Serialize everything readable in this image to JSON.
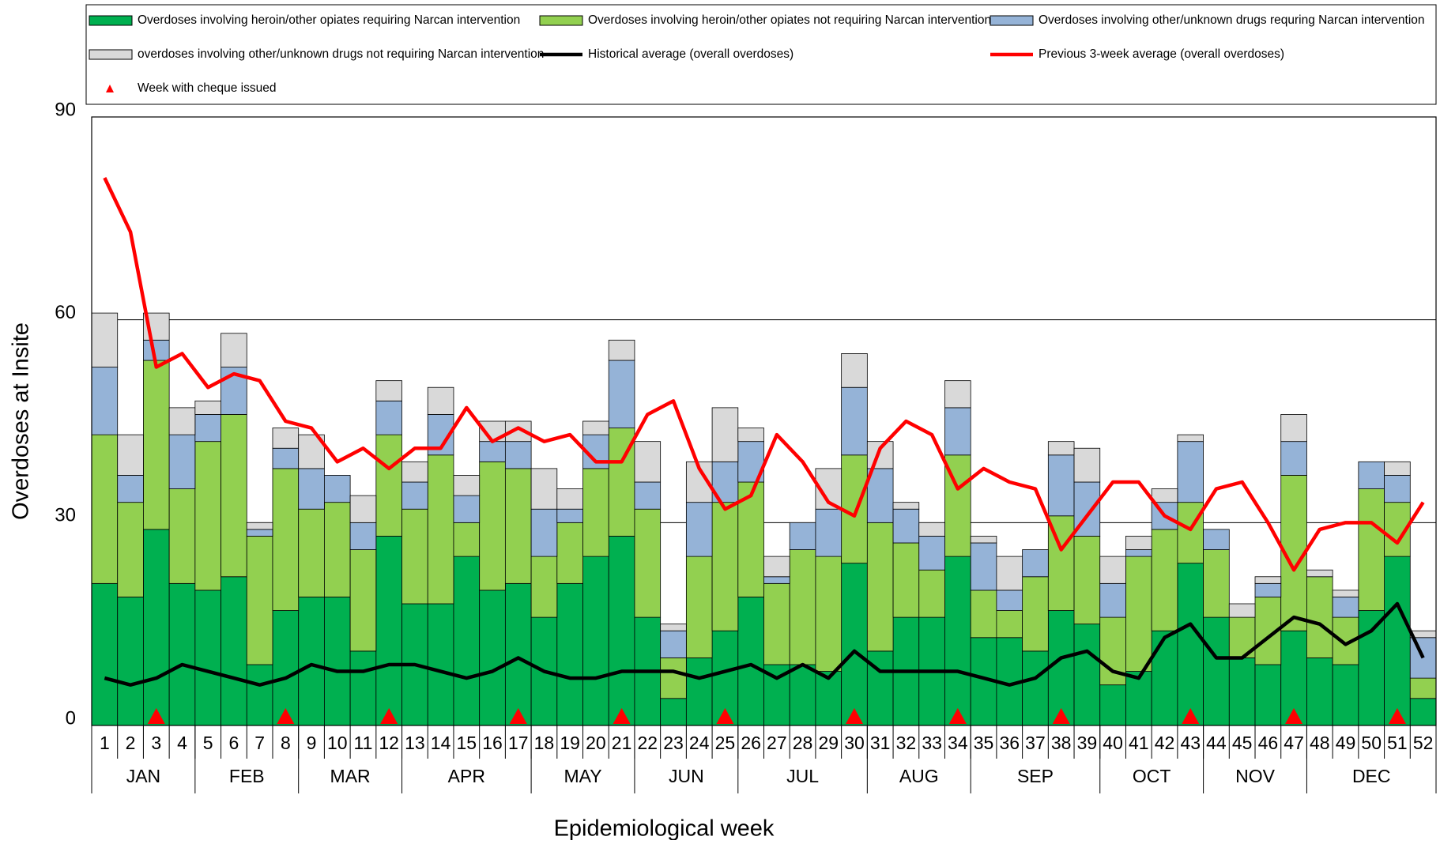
{
  "chart_data": {
    "type": "bar",
    "stacked": true,
    "x_label": "Epidemiological week",
    "y_label": "Overdoses at Insite",
    "categories": [
      "1",
      "2",
      "3",
      "4",
      "5",
      "6",
      "7",
      "8",
      "9",
      "10",
      "11",
      "12",
      "13",
      "14",
      "15",
      "16",
      "17",
      "18",
      "19",
      "20",
      "21",
      "22",
      "23",
      "24",
      "25",
      "26",
      "27",
      "28",
      "29",
      "30",
      "31",
      "32",
      "33",
      "34",
      "35",
      "36",
      "37",
      "38",
      "39",
      "40",
      "41",
      "42",
      "43",
      "44",
      "45",
      "46",
      "47",
      "48",
      "49",
      "50",
      "51",
      "52"
    ],
    "months": [
      {
        "label": "JAN",
        "first_week": "1",
        "last_week": "4"
      },
      {
        "label": "FEB",
        "first_week": "5",
        "last_week": "8"
      },
      {
        "label": "MAR",
        "first_week": "9",
        "last_week": "12"
      },
      {
        "label": "APR",
        "first_week": "13",
        "last_week": "17"
      },
      {
        "label": "MAY",
        "first_week": "18",
        "last_week": "21"
      },
      {
        "label": "JUN",
        "first_week": "22",
        "last_week": "25"
      },
      {
        "label": "JUL",
        "first_week": "26",
        "last_week": "30"
      },
      {
        "label": "AUG",
        "first_week": "31",
        "last_week": "34"
      },
      {
        "label": "SEP",
        "first_week": "35",
        "last_week": "39"
      },
      {
        "label": "OCT",
        "first_week": "40",
        "last_week": "43"
      },
      {
        "label": "NOV",
        "first_week": "44",
        "last_week": "47"
      },
      {
        "label": "DEC",
        "first_week": "48",
        "last_week": "52"
      }
    ],
    "series": [
      {
        "name": "Overdoses involving heroin/other opiates requiring Narcan intervention",
        "color": "#00b050",
        "values": [
          21,
          19,
          29,
          21,
          20,
          22,
          9,
          17,
          19,
          19,
          11,
          28,
          18,
          18,
          25,
          20,
          21,
          16,
          21,
          25,
          28,
          16,
          4,
          10,
          14,
          19,
          9,
          9,
          8,
          24,
          11,
          16,
          16,
          25,
          13,
          13,
          11,
          17,
          15,
          6,
          8,
          14,
          24,
          16,
          10,
          9,
          14,
          10,
          9,
          17,
          25,
          4
        ]
      },
      {
        "name": "Overdoses involving heroin/other opiates not requiring Narcan intervention",
        "color": "#92d050",
        "values": [
          22,
          14,
          25,
          14,
          22,
          24,
          19,
          21,
          13,
          14,
          15,
          15,
          14,
          22,
          5,
          19,
          17,
          9,
          9,
          13,
          16,
          16,
          6,
          15,
          19,
          17,
          12,
          17,
          17,
          16,
          19,
          11,
          7,
          15,
          7,
          4,
          11,
          14,
          13,
          10,
          17,
          15,
          9,
          10,
          6,
          10,
          23,
          12,
          7,
          18,
          8,
          3
        ]
      },
      {
        "name": "Overdoses involving other/unknown drugs requring Narcan intervention",
        "color": "#95b3d7",
        "values": [
          10,
          4,
          3,
          8,
          4,
          7,
          1,
          3,
          6,
          4,
          4,
          5,
          4,
          6,
          4,
          3,
          4,
          7,
          2,
          5,
          10,
          4,
          4,
          8,
          6,
          6,
          1,
          4,
          7,
          10,
          8,
          5,
          5,
          7,
          7,
          3,
          4,
          9,
          8,
          5,
          1,
          4,
          9,
          3,
          0,
          2,
          5,
          0,
          3,
          4,
          4,
          6
        ]
      },
      {
        "name": "overdoses involving other/unknown drugs not requiring Narcan intervention",
        "color": "#d9d9d9",
        "values": [
          8,
          6,
          4,
          4,
          2,
          5,
          1,
          3,
          5,
          0,
          4,
          3,
          3,
          4,
          3,
          3,
          3,
          6,
          3,
          2,
          3,
          6,
          1,
          6,
          8,
          2,
          3,
          0,
          6,
          5,
          4,
          1,
          2,
          4,
          1,
          5,
          0,
          2,
          5,
          4,
          2,
          2,
          1,
          0,
          2,
          1,
          4,
          1,
          1,
          0,
          2,
          1
        ]
      }
    ],
    "lines": [
      {
        "name": "Historical average (overall overdoses)",
        "color": "#000000",
        "values": [
          7,
          6,
          7,
          9,
          8,
          7,
          6,
          7,
          9,
          8,
          8,
          9,
          9,
          8,
          7,
          8,
          10,
          8,
          7,
          7,
          8,
          8,
          8,
          7,
          8,
          9,
          7,
          9,
          7,
          11,
          8,
          8,
          8,
          8,
          7,
          6,
          7,
          10,
          11,
          8,
          7,
          13,
          15,
          10,
          10,
          13,
          16,
          15,
          12,
          14,
          18,
          10
        ]
      },
      {
        "name": "Previous 3-week average (overall overdoses)",
        "color": "#ff0000",
        "values": [
          81,
          73,
          53,
          55,
          50,
          52,
          51,
          45,
          44,
          39,
          41,
          38,
          41,
          41,
          47,
          42,
          44,
          42,
          43,
          39,
          39,
          46,
          48,
          38,
          32,
          34,
          43,
          39,
          33,
          31,
          41,
          45,
          43,
          35,
          38,
          36,
          35,
          26,
          31,
          36,
          36,
          31,
          29,
          35,
          36,
          30,
          23,
          29,
          30,
          30,
          27,
          33
        ]
      }
    ],
    "markers": {
      "name": "Week with cheque issued",
      "color": "#ff0000",
      "weeks": [
        "3",
        "8",
        "12",
        "17",
        "21",
        "25",
        "30",
        "34",
        "38",
        "43",
        "47",
        "51"
      ]
    },
    "ylim": [
      0,
      90
    ],
    "yticks": [
      0,
      30,
      60,
      90
    ],
    "grid": true
  }
}
